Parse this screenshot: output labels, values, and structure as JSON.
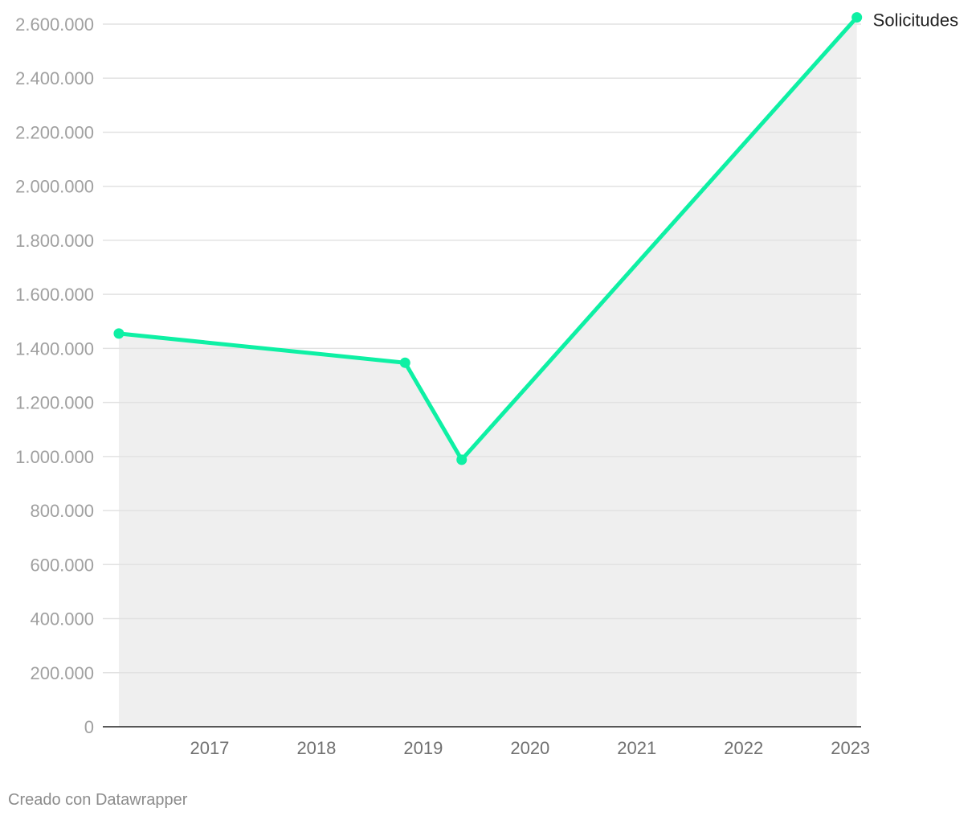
{
  "chart_data": {
    "type": "area",
    "x_ticks": [
      2017,
      2018,
      2019,
      2020,
      2021,
      2022,
      2023
    ],
    "xlim": [
      2016.5,
      2023.6
    ],
    "ylim": [
      0,
      2600000
    ],
    "y_ticks": [
      0,
      200000,
      400000,
      600000,
      800000,
      1000000,
      1200000,
      1400000,
      1600000,
      1800000,
      2000000,
      2200000,
      2400000,
      2600000
    ],
    "y_tick_labels": [
      "0",
      "200.000",
      "400.000",
      "600.000",
      "800.000",
      "1.000.000",
      "1.200.000",
      "1.400.000",
      "1.600.000",
      "1.800.000",
      "2.000.000",
      "2.200.000",
      "2.400.000",
      "2.600.000"
    ],
    "grid": true,
    "series": [
      {
        "name": "Solicitudes",
        "color": "#0ef0a4",
        "area_color": "#efefef",
        "points": [
          {
            "x": 2016.65,
            "y": 1455000
          },
          {
            "x": 2019.33,
            "y": 1347000
          },
          {
            "x": 2019.86,
            "y": 988000
          },
          {
            "x": 2023.56,
            "y": 2625000
          }
        ]
      }
    ]
  },
  "credit": "Creado con Datawrapper"
}
